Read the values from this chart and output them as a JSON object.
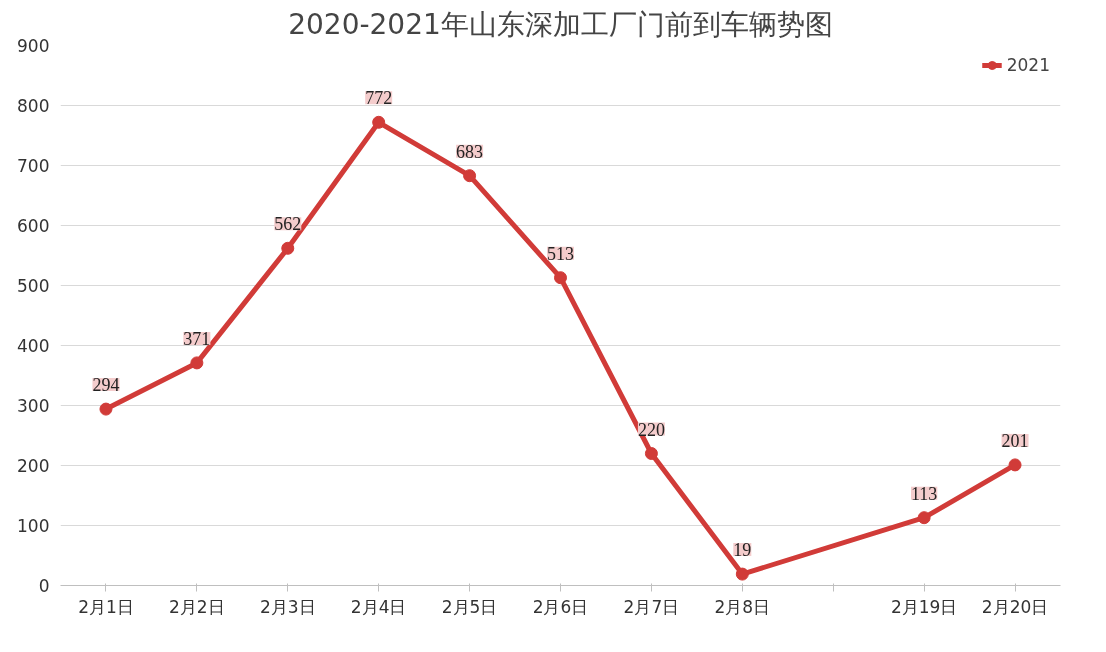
{
  "chart_data": {
    "type": "line",
    "title": "2020-2021年山东深加工厂门前到车辆势图",
    "categories": [
      "2月1日",
      "2月2日",
      "2月3日",
      "2月4日",
      "2月5日",
      "2月6日",
      "2月7日",
      "2月8日",
      null,
      "2月19日",
      "2月20日"
    ],
    "series": [
      {
        "name": "2021",
        "color": "#d13b38",
        "values": [
          294,
          371,
          562,
          772,
          683,
          513,
          220,
          19,
          null,
          113,
          201
        ]
      }
    ],
    "ylim": [
      0,
      900
    ],
    "yticks": [
      0,
      100,
      200,
      300,
      400,
      500,
      600,
      700,
      800,
      900
    ],
    "grid": "y",
    "legend": "top right",
    "marker": "circle",
    "data_labels": true
  }
}
